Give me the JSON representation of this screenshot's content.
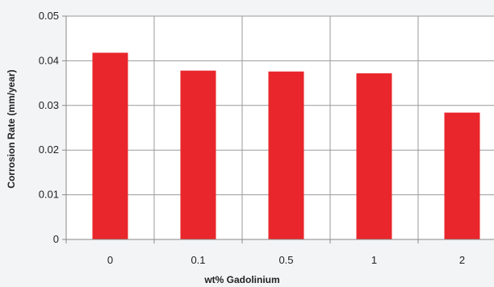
{
  "chart_data": {
    "type": "bar",
    "title": "",
    "xlabel": "wt% Gadolinium",
    "ylabel": "Corrosion Rate (mm/year)",
    "categories": [
      "0",
      "0.1",
      "0.5",
      "1",
      "2"
    ],
    "values": [
      0.0418,
      0.0378,
      0.0376,
      0.0372,
      0.0284
    ],
    "ylim": [
      0,
      0.05
    ],
    "yticks": [
      "0",
      "0.01",
      "0.02",
      "0.03",
      "0.04",
      "0.05"
    ],
    "grid": true,
    "legend": "none",
    "colors": {
      "bar": "#e8262b",
      "grid": "#9a9a9a",
      "axis": "#8a8a8a",
      "plot_bg": "#ffffff",
      "outer_bg": "#f3f4f6"
    }
  }
}
